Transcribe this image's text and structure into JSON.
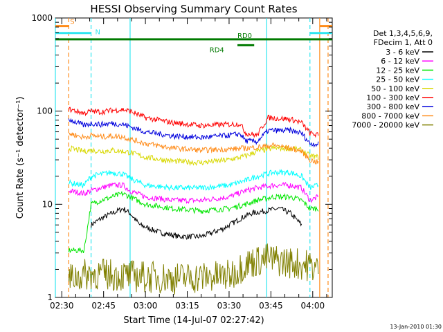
{
  "chart_data": {
    "type": "line",
    "title": "HESSI Observing Summary Count Rates",
    "xlabel": "Start Time (14-Jul-07 02:27:42)",
    "ylabel": "Count Rate (s⁻¹ detector⁻¹)",
    "ylim": [
      1,
      1000
    ],
    "yscale": "log",
    "y_ticks": [
      "1",
      "10",
      "100",
      "1000"
    ],
    "x_ticks": [
      "02:30",
      "02:45",
      "03:00",
      "03:15",
      "03:30",
      "03:45",
      "04:00"
    ],
    "x_tick_minutes": [
      0,
      15,
      30,
      45,
      60,
      75,
      90
    ],
    "xlim_minutes": [
      -2.3,
      97
    ],
    "footer": "13-Jan-2010 01:30",
    "legend": {
      "placement": "right",
      "header": [
        "Det 1,3,4,5,6,9,",
        "FDecim 1, Att 0"
      ]
    },
    "flags": [
      {
        "label": "S",
        "color": "#ff8c1a",
        "level": 820,
        "segments": [
          [
            -2.3,
            2.5
          ],
          [
            92.5,
            97
          ]
        ]
      },
      {
        "label": "N",
        "color": "#2ee6f0",
        "level": 690,
        "segments": [
          [
            -2.3,
            10.5
          ],
          [
            89,
            97
          ]
        ]
      },
      {
        "label": "RD0",
        "color": "#007a00",
        "level": 590,
        "segments": [
          [
            -2.3,
            97
          ]
        ]
      },
      {
        "label": "RD4",
        "color": "#007a00",
        "level": 510,
        "segments": [
          [
            63,
            69
          ]
        ]
      }
    ],
    "markers": [
      {
        "minute": -2.3,
        "color": "#2ee6f0",
        "style": "solid"
      },
      {
        "minute": 2.5,
        "color": "#ff8c1a",
        "style": "dashed"
      },
      {
        "minute": 10.5,
        "color": "#2ee6f0",
        "style": "dashed"
      },
      {
        "minute": 24.5,
        "color": "#2ee6f0",
        "style": "solid"
      },
      {
        "minute": 73.5,
        "color": "#2ee6f0",
        "style": "solid"
      },
      {
        "minute": 89.0,
        "color": "#2ee6f0",
        "style": "dashed"
      },
      {
        "minute": 92.5,
        "color": "#ff8c1a",
        "style": "solid"
      },
      {
        "minute": 95.5,
        "color": "#ff8c1a",
        "style": "dashed"
      }
    ],
    "series": [
      {
        "name": "3 - 6 keV",
        "color": "#000000",
        "x": [
          10.5,
          14,
          18,
          22,
          24.5,
          28,
          35,
          42,
          50,
          58,
          64,
          68,
          73,
          78,
          82,
          86
        ],
        "y": [
          6,
          7,
          8,
          9,
          8,
          6,
          5,
          4.5,
          4.5,
          5.5,
          7,
          8,
          8.5,
          9,
          8,
          6
        ]
      },
      {
        "name": "6 - 12 keV",
        "color": "#ff00ff",
        "x": [
          2.5,
          8,
          10.5,
          14,
          18,
          22,
          24.5,
          30,
          40,
          50,
          60,
          66,
          70,
          76,
          82,
          86,
          89,
          92
        ],
        "y": [
          14,
          13,
          14,
          15,
          16,
          16,
          14,
          12,
          11,
          11,
          12,
          14,
          15,
          16,
          16,
          15,
          11,
          12
        ]
      },
      {
        "name": "12 - 25 keV",
        "color": "#00e600",
        "x": [
          2.5,
          8,
          10.5,
          14,
          18,
          22,
          24.5,
          30,
          40,
          50,
          60,
          66,
          70,
          76,
          82,
          86,
          89,
          92
        ],
        "y": [
          3.2,
          3.2,
          10,
          11,
          12,
          13,
          12,
          10,
          9,
          8.5,
          9,
          10,
          11,
          12,
          12,
          11,
          9,
          9
        ]
      },
      {
        "name": "25 - 50 keV",
        "color": "#00ffff",
        "x": [
          2.5,
          8,
          10.5,
          14,
          18,
          22,
          24.5,
          30,
          40,
          50,
          60,
          66,
          70,
          76,
          82,
          86,
          89,
          92
        ],
        "y": [
          17,
          16,
          20,
          21,
          22,
          21,
          19,
          16,
          15,
          15,
          16,
          18,
          20,
          22,
          22,
          20,
          15,
          16
        ]
      },
      {
        "name": "50 - 100 keV",
        "color": "#d8d800",
        "x": [
          2.5,
          8,
          10.5,
          14,
          18,
          22,
          24.5,
          30,
          40,
          50,
          60,
          66,
          70,
          76,
          82,
          86,
          89,
          92
        ],
        "y": [
          40,
          37,
          38,
          37,
          38,
          37,
          36,
          32,
          29,
          28,
          30,
          33,
          37,
          40,
          40,
          38,
          33,
          32
        ]
      },
      {
        "name": "100 - 300 keV",
        "color": "#ff0000",
        "x": [
          2.5,
          8,
          10.5,
          14,
          18,
          22,
          24.5,
          30,
          40,
          50,
          60,
          64,
          66,
          70,
          74,
          82,
          86,
          89,
          92
        ],
        "y": [
          105,
          95,
          100,
          98,
          102,
          104,
          100,
          85,
          75,
          70,
          72,
          73,
          58,
          55,
          85,
          82,
          75,
          58,
          55
        ]
      },
      {
        "name": "300 - 800 keV",
        "color": "#0000dd",
        "x": [
          2.5,
          8,
          10.5,
          14,
          18,
          22,
          24.5,
          30,
          40,
          50,
          60,
          64,
          66,
          70,
          74,
          82,
          86,
          89,
          92
        ],
        "y": [
          82,
          70,
          74,
          72,
          74,
          72,
          68,
          60,
          54,
          52,
          55,
          57,
          48,
          47,
          62,
          62,
          58,
          45,
          44
        ]
      },
      {
        "name": "800 - 7000 keV",
        "color": "#ff8c1a",
        "x": [
          2.5,
          8,
          10.5,
          14,
          18,
          22,
          24.5,
          30,
          40,
          50,
          60,
          66,
          70,
          76,
          82,
          86,
          89,
          92
        ],
        "y": [
          58,
          52,
          55,
          53,
          54,
          53,
          50,
          45,
          40,
          38,
          39,
          40,
          41,
          43,
          40,
          37,
          30,
          28
        ]
      },
      {
        "name": "7000 - 20000 keV",
        "color": "#808000",
        "x": [
          2.5,
          10.5,
          24.5,
          40,
          60,
          66,
          73.5,
          89,
          92
        ],
        "y": [
          1.6,
          1.8,
          1.7,
          1.6,
          1.7,
          2.3,
          2.6,
          2.2,
          2.0
        ]
      }
    ]
  }
}
